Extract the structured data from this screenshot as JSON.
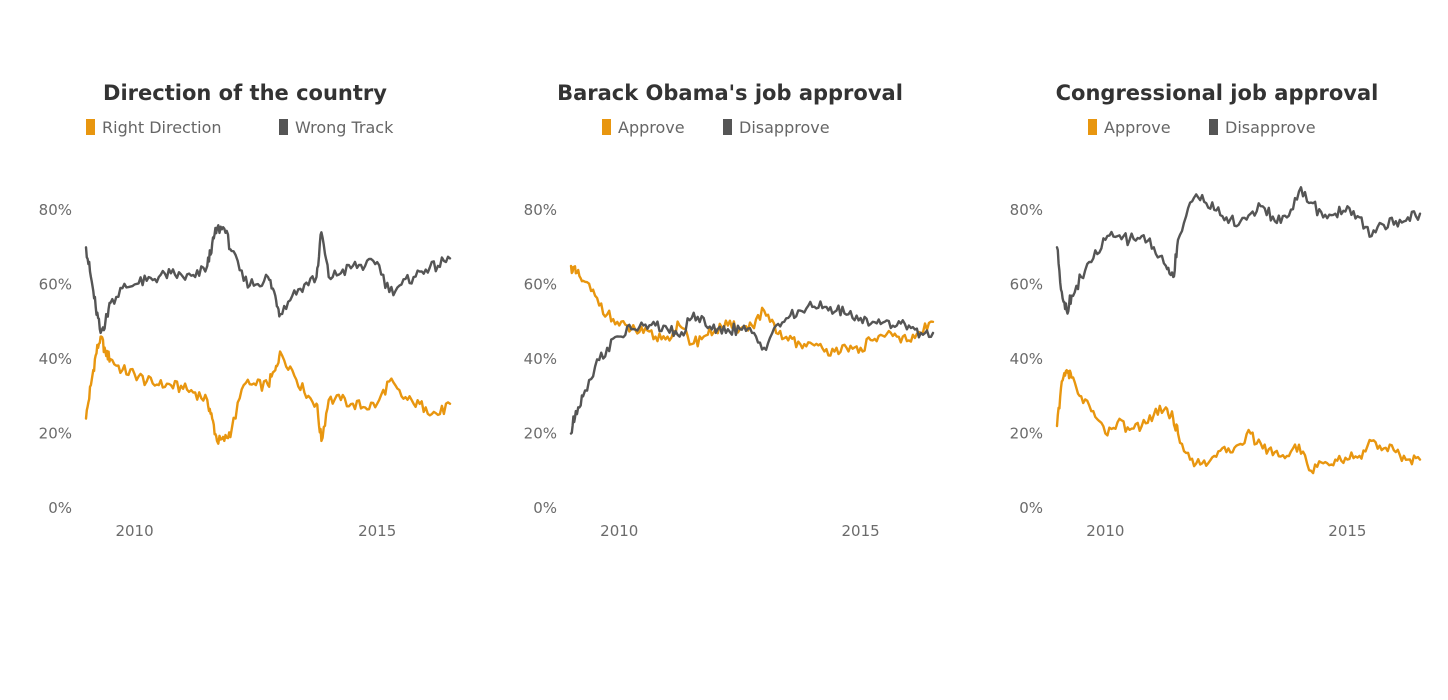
{
  "colors": {
    "orange": "#E8960F",
    "gray": "#555555"
  },
  "chart_data": [
    {
      "type": "line",
      "title": "Direction of the country",
      "xlabel": "",
      "ylabel": "",
      "x_ticks": [
        "2010",
        "2015"
      ],
      "y_ticks": [
        "0%",
        "20%",
        "40%",
        "60%",
        "80%"
      ],
      "xlim": [
        2009.0,
        2016.5
      ],
      "ylim": [
        0,
        80
      ],
      "grid": false,
      "legend_position": "top",
      "x": [
        2009.0,
        2009.1,
        2009.2,
        2009.3,
        2009.4,
        2009.5,
        2009.75,
        2010.0,
        2010.25,
        2010.5,
        2010.75,
        2011.0,
        2011.25,
        2011.5,
        2011.6,
        2011.7,
        2011.85,
        2012.0,
        2012.25,
        2012.5,
        2012.75,
        2012.9,
        2013.0,
        2013.25,
        2013.5,
        2013.75,
        2013.85,
        2014.0,
        2014.25,
        2014.5,
        2014.75,
        2015.0,
        2015.25,
        2015.5,
        2015.75,
        2016.0,
        2016.25,
        2016.5
      ],
      "series": [
        {
          "name": "Right Direction",
          "color": "#E8960F",
          "values": [
            24,
            33,
            41,
            46,
            42,
            40,
            37,
            36,
            34,
            33,
            33,
            32,
            31,
            29,
            24,
            18,
            18,
            21,
            33,
            33,
            33,
            37,
            42,
            37,
            31,
            28,
            18,
            29,
            29,
            28,
            27,
            28,
            34,
            30,
            28,
            27,
            25,
            28
          ]
        },
        {
          "name": "Wrong Track",
          "color": "#555555",
          "values": [
            70,
            62,
            54,
            47,
            50,
            55,
            59,
            60,
            61,
            62,
            63,
            62,
            62,
            65,
            71,
            75,
            75,
            69,
            61,
            60,
            62,
            57,
            52,
            57,
            60,
            62,
            74,
            62,
            63,
            65,
            65,
            66,
            58,
            60,
            62,
            64,
            65,
            67
          ]
        }
      ]
    },
    {
      "type": "line",
      "title": "Barack Obama's job approval",
      "xlabel": "",
      "ylabel": "",
      "x_ticks": [
        "2010",
        "2015"
      ],
      "y_ticks": [
        "0%",
        "20%",
        "40%",
        "60%",
        "80%"
      ],
      "xlim": [
        2009.0,
        2016.5
      ],
      "ylim": [
        0,
        80
      ],
      "grid": false,
      "legend_position": "top",
      "x": [
        2009.0,
        2009.1,
        2009.25,
        2009.5,
        2009.75,
        2010.0,
        2010.25,
        2010.5,
        2010.75,
        2011.0,
        2011.25,
        2011.5,
        2011.75,
        2012.0,
        2012.25,
        2012.5,
        2012.75,
        2013.0,
        2013.25,
        2013.5,
        2013.75,
        2014.0,
        2014.25,
        2014.5,
        2014.75,
        2015.0,
        2015.25,
        2015.5,
        2015.75,
        2016.0,
        2016.25,
        2016.5
      ],
      "series": [
        {
          "name": "Approve",
          "color": "#E8960F",
          "values": [
            65,
            63,
            61,
            57,
            52,
            49,
            48,
            47,
            46,
            46,
            49,
            44,
            46,
            48,
            49,
            48,
            49,
            53,
            47,
            45,
            44,
            44,
            42,
            43,
            42,
            43,
            45,
            46,
            46,
            45,
            47,
            50
          ]
        },
        {
          "name": "Disapprove",
          "color": "#555555",
          "values": [
            20,
            26,
            30,
            38,
            43,
            46,
            48,
            49,
            49,
            48,
            46,
            51,
            51,
            47,
            48,
            48,
            47,
            43,
            49,
            51,
            53,
            54,
            54,
            53,
            52,
            51,
            50,
            50,
            49,
            49,
            47,
            47
          ]
        }
      ]
    },
    {
      "type": "line",
      "title": "Congressional job approval",
      "xlabel": "",
      "ylabel": "",
      "x_ticks": [
        "2010",
        "2015"
      ],
      "y_ticks": [
        "0%",
        "20%",
        "40%",
        "60%",
        "80%"
      ],
      "xlim": [
        2009.0,
        2016.5
      ],
      "ylim": [
        0,
        80
      ],
      "grid": false,
      "legend_position": "top",
      "x": [
        2009.0,
        2009.1,
        2009.2,
        2009.3,
        2009.5,
        2009.75,
        2010.0,
        2010.25,
        2010.5,
        2010.75,
        2011.0,
        2011.25,
        2011.4,
        2011.5,
        2011.75,
        2012.0,
        2012.25,
        2012.5,
        2012.75,
        2013.0,
        2013.25,
        2013.5,
        2013.75,
        2014.0,
        2014.25,
        2014.5,
        2014.75,
        2015.0,
        2015.25,
        2015.5,
        2015.75,
        2016.0,
        2016.25,
        2016.5
      ],
      "series": [
        {
          "name": "Approve",
          "color": "#E8960F",
          "values": [
            22,
            34,
            37,
            35,
            30,
            26,
            20,
            23,
            21,
            22,
            25,
            27,
            24,
            20,
            13,
            12,
            14,
            15,
            17,
            20,
            16,
            15,
            14,
            17,
            10,
            12,
            13,
            13,
            14,
            18,
            16,
            15,
            13,
            13
          ]
        },
        {
          "name": "Disapprove",
          "color": "#555555",
          "values": [
            70,
            58,
            53,
            57,
            62,
            67,
            72,
            73,
            72,
            73,
            70,
            65,
            62,
            72,
            82,
            84,
            80,
            78,
            76,
            79,
            81,
            77,
            78,
            85,
            82,
            78,
            79,
            81,
            78,
            73,
            76,
            77,
            78,
            79
          ]
        }
      ]
    }
  ]
}
